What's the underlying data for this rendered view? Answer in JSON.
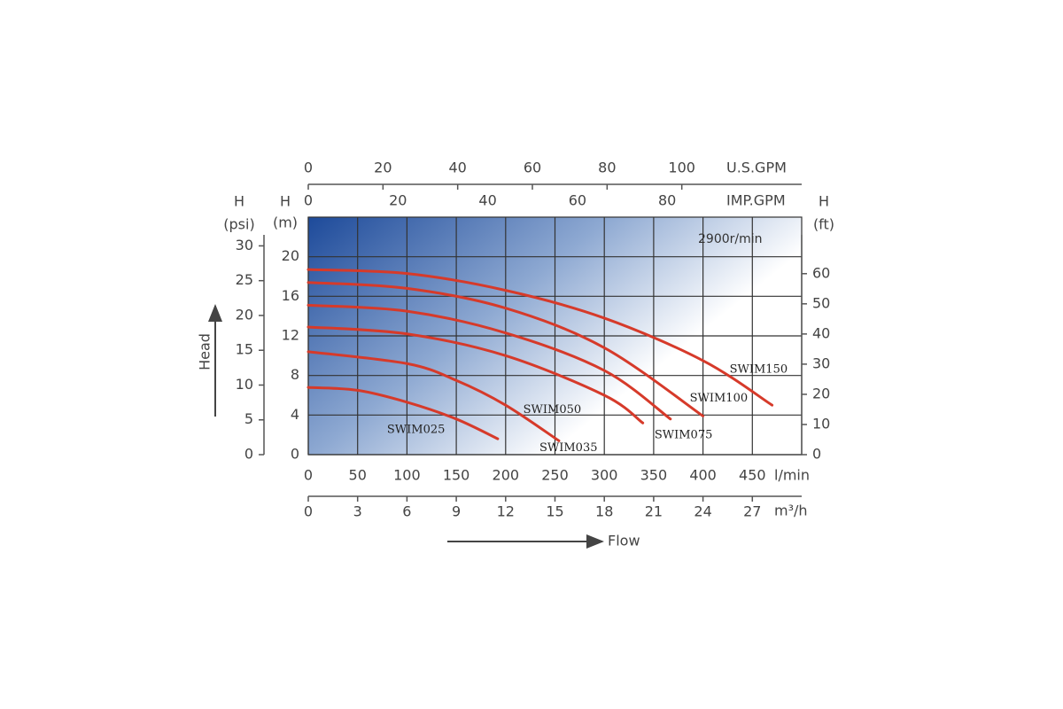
{
  "chart_data": {
    "type": "line",
    "speed": "2900r/min",
    "x_title": "Flow",
    "y_title": "Head",
    "xunit": "l/min",
    "ylabel": "H",
    "yunit": "(m)",
    "xlim": [
      0,
      500
    ],
    "xticks": [
      0,
      50,
      100,
      150,
      200,
      250,
      300,
      350,
      400,
      450
    ],
    "ylim": [
      0,
      24
    ],
    "yticks": [
      0,
      4,
      8,
      12,
      16,
      20
    ],
    "grid": true,
    "series": [
      {
        "name": "SWIM150",
        "color": "#d63a2a",
        "x": [
          0,
          100,
          200,
          300,
          400,
          470
        ],
        "values": [
          18.7,
          18.3,
          16.6,
          13.8,
          9.5,
          5.0
        ]
      },
      {
        "name": "SWIM100",
        "color": "#d63a2a",
        "x": [
          0,
          100,
          200,
          300,
          400
        ],
        "values": [
          17.4,
          16.8,
          14.8,
          10.8,
          3.9
        ]
      },
      {
        "name": "SWIM075",
        "color": "#d63a2a",
        "x": [
          0,
          100,
          200,
          300,
          367
        ],
        "values": [
          15.1,
          14.5,
          12.3,
          8.5,
          3.6
        ]
      },
      {
        "name": "SWIM050",
        "color": "#d63a2a",
        "x": [
          0,
          100,
          200,
          300,
          339
        ],
        "values": [
          12.9,
          12.2,
          10.0,
          6.0,
          3.2
        ]
      },
      {
        "name": "SWIM035",
        "color": "#d63a2a",
        "x": [
          0,
          100,
          150,
          200,
          254
        ],
        "values": [
          10.4,
          9.2,
          7.5,
          5.0,
          1.4
        ]
      },
      {
        "name": "SWIM025",
        "color": "#d63a2a",
        "x": [
          0,
          50,
          100,
          150,
          192
        ],
        "values": [
          6.8,
          6.5,
          5.3,
          3.6,
          1.6
        ]
      }
    ],
    "extra_axes": [
      {
        "side": "left",
        "label": "H",
        "unit": "(psi)",
        "lim": [
          0,
          34.13
        ],
        "ticks": [
          0,
          5,
          10,
          15,
          20,
          25,
          30
        ]
      },
      {
        "side": "right",
        "label": "H",
        "unit": "(ft)",
        "lim": [
          0,
          78.74
        ],
        "ticks": [
          0,
          10,
          20,
          30,
          40,
          50,
          60
        ]
      },
      {
        "side": "bottom",
        "unit": "m³/h",
        "lim": [
          0,
          30
        ],
        "ticks": [
          0,
          3,
          6,
          9,
          12,
          15,
          18,
          21,
          24,
          27
        ]
      },
      {
        "side": "top",
        "unit": "U.S.GPM",
        "lim": [
          0,
          132.09
        ],
        "ticks": [
          0,
          20,
          40,
          60,
          80,
          100
        ]
      },
      {
        "side": "top",
        "unit": "IMP.GPM",
        "lim": [
          0,
          109.98
        ],
        "ticks": [
          0,
          20,
          40,
          60,
          80
        ]
      }
    ]
  }
}
